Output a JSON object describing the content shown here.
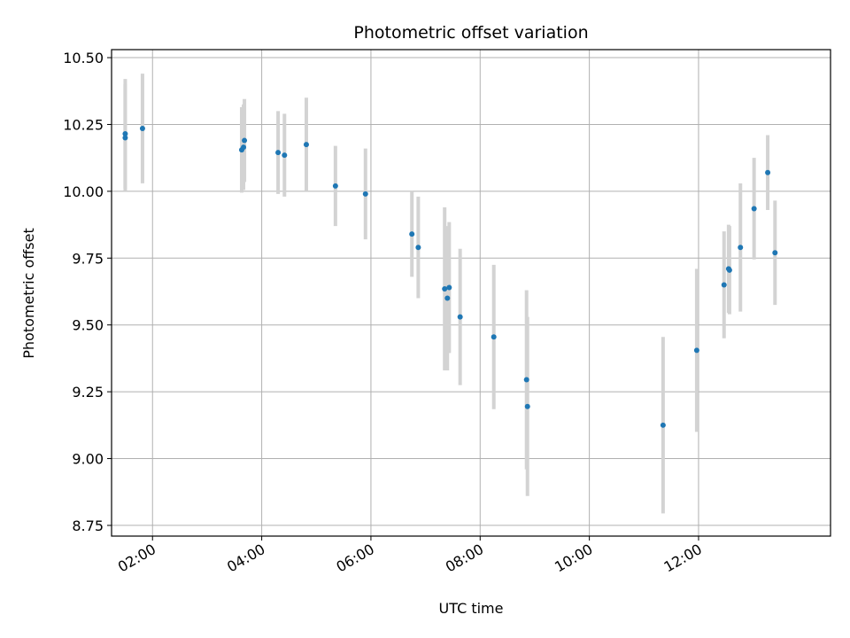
{
  "chart_data": {
    "type": "scatter",
    "title": "Photometric offset variation",
    "xlabel": "UTC time",
    "ylabel": "Photometric offset",
    "x_axis": "time",
    "xlim": [
      "01:15",
      "14:25"
    ],
    "ylim": [
      8.71,
      10.53
    ],
    "x_ticks": [
      "02:00",
      "04:00",
      "06:00",
      "08:00",
      "10:00",
      "12:00"
    ],
    "y_ticks": [
      "8.75",
      "9.00",
      "9.25",
      "9.50",
      "9.75",
      "10.00",
      "10.25",
      "10.50"
    ],
    "grid": true,
    "colors": {
      "point": "#1f77b4",
      "errorbar": "#d3d3d3",
      "grid": "#b0b0b0"
    },
    "points": [
      {
        "time": "01:30",
        "y": 10.215,
        "err": 0.205
      },
      {
        "time": "01:30",
        "y": 10.2,
        "err": 0.2
      },
      {
        "time": "01:49",
        "y": 10.235,
        "err": 0.205
      },
      {
        "time": "03:38",
        "y": 10.155,
        "err": 0.16
      },
      {
        "time": "03:40",
        "y": 10.165,
        "err": 0.16
      },
      {
        "time": "03:41",
        "y": 10.19,
        "err": 0.155
      },
      {
        "time": "04:18",
        "y": 10.145,
        "err": 0.155
      },
      {
        "time": "04:25",
        "y": 10.135,
        "err": 0.155
      },
      {
        "time": "04:49",
        "y": 10.175,
        "err": 0.175
      },
      {
        "time": "05:21",
        "y": 10.02,
        "err": 0.15
      },
      {
        "time": "05:54",
        "y": 9.99,
        "err": 0.17
      },
      {
        "time": "06:45",
        "y": 9.84,
        "err": 0.16
      },
      {
        "time": "06:52",
        "y": 9.79,
        "err": 0.19
      },
      {
        "time": "07:21",
        "y": 9.635,
        "err": 0.305
      },
      {
        "time": "07:24",
        "y": 9.6,
        "err": 0.27
      },
      {
        "time": "07:26",
        "y": 9.64,
        "err": 0.245
      },
      {
        "time": "07:38",
        "y": 9.53,
        "err": 0.255
      },
      {
        "time": "08:15",
        "y": 9.455,
        "err": 0.27
      },
      {
        "time": "08:51",
        "y": 9.295,
        "err": 0.335
      },
      {
        "time": "08:52",
        "y": 9.195,
        "err": 0.335
      },
      {
        "time": "11:21",
        "y": 9.125,
        "err": 0.33
      },
      {
        "time": "11:58",
        "y": 9.405,
        "err": 0.305
      },
      {
        "time": "12:28",
        "y": 9.65,
        "err": 0.2
      },
      {
        "time": "12:33",
        "y": 9.71,
        "err": 0.165
      },
      {
        "time": "12:34",
        "y": 9.705,
        "err": 0.165
      },
      {
        "time": "12:46",
        "y": 9.79,
        "err": 0.24
      },
      {
        "time": "13:01",
        "y": 9.935,
        "err": 0.19
      },
      {
        "time": "13:16",
        "y": 10.07,
        "err": 0.14
      },
      {
        "time": "13:24",
        "y": 9.77,
        "err": 0.195
      }
    ]
  }
}
